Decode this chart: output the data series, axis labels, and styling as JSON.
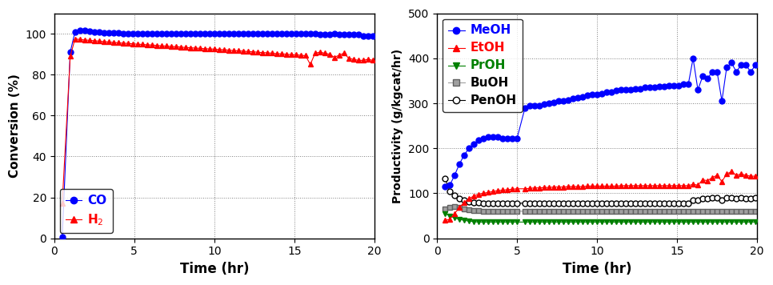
{
  "left_plot": {
    "xlabel": "Time (hr)",
    "ylabel": "Conversion (%)",
    "xlim": [
      0,
      20
    ],
    "ylim": [
      0,
      110
    ],
    "yticks": [
      0,
      20,
      40,
      60,
      80,
      100
    ],
    "xticks": [
      0,
      5,
      10,
      15,
      20
    ],
    "CO_x": [
      0.5,
      1.0,
      1.3,
      1.6,
      1.9,
      2.2,
      2.5,
      2.8,
      3.1,
      3.4,
      3.7,
      4.0,
      4.3,
      4.6,
      4.9,
      5.2,
      5.5,
      5.8,
      6.1,
      6.4,
      6.7,
      7.0,
      7.3,
      7.6,
      7.9,
      8.2,
      8.5,
      8.8,
      9.1,
      9.4,
      9.7,
      10.0,
      10.3,
      10.6,
      10.9,
      11.2,
      11.5,
      11.8,
      12.1,
      12.4,
      12.7,
      13.0,
      13.3,
      13.6,
      13.9,
      14.2,
      14.5,
      14.8,
      15.1,
      15.4,
      15.7,
      16.0,
      16.3,
      16.6,
      16.9,
      17.2,
      17.5,
      17.8,
      18.1,
      18.4,
      18.7,
      19.0,
      19.3,
      19.6,
      19.9
    ],
    "CO_y": [
      0.5,
      91.0,
      101.0,
      101.5,
      101.5,
      101.2,
      101.0,
      100.8,
      100.6,
      100.5,
      100.4,
      100.3,
      100.2,
      100.2,
      100.1,
      100.1,
      100.0,
      100.0,
      100.1,
      100.2,
      100.0,
      100.0,
      99.9,
      100.0,
      100.0,
      100.1,
      100.0,
      99.9,
      100.0,
      100.0,
      100.0,
      100.0,
      100.0,
      99.9,
      100.0,
      100.0,
      100.0,
      100.0,
      100.0,
      100.0,
      100.0,
      100.0,
      100.0,
      100.0,
      100.0,
      100.0,
      100.0,
      100.0,
      100.0,
      100.0,
      100.0,
      100.0,
      100.0,
      99.5,
      99.8,
      99.5,
      100.0,
      99.5,
      99.5,
      99.5,
      99.5,
      99.5,
      99.0,
      99.0,
      99.0
    ],
    "H2_x": [
      0.5,
      1.0,
      1.3,
      1.6,
      1.9,
      2.2,
      2.5,
      2.8,
      3.1,
      3.4,
      3.7,
      4.0,
      4.3,
      4.6,
      4.9,
      5.2,
      5.5,
      5.8,
      6.1,
      6.4,
      6.7,
      7.0,
      7.3,
      7.6,
      7.9,
      8.2,
      8.5,
      8.8,
      9.1,
      9.4,
      9.7,
      10.0,
      10.3,
      10.6,
      10.9,
      11.2,
      11.5,
      11.8,
      12.1,
      12.4,
      12.7,
      13.0,
      13.3,
      13.6,
      13.9,
      14.2,
      14.5,
      14.8,
      15.1,
      15.4,
      15.7,
      16.0,
      16.3,
      16.6,
      16.9,
      17.2,
      17.5,
      17.8,
      18.1,
      18.4,
      18.7,
      19.0,
      19.3,
      19.6,
      19.9
    ],
    "H2_y": [
      17.0,
      89.0,
      97.5,
      97.2,
      97.0,
      96.8,
      96.6,
      96.4,
      96.2,
      96.0,
      95.8,
      95.6,
      95.4,
      95.3,
      95.1,
      94.9,
      94.8,
      94.6,
      94.5,
      94.3,
      94.1,
      94.0,
      93.8,
      93.7,
      93.5,
      93.3,
      93.2,
      93.0,
      92.9,
      92.7,
      92.6,
      92.5,
      92.3,
      92.2,
      92.0,
      91.8,
      91.7,
      91.5,
      91.3,
      91.2,
      91.0,
      90.8,
      90.7,
      90.5,
      90.3,
      90.2,
      90.0,
      89.8,
      89.7,
      89.5,
      89.3,
      85.0,
      90.5,
      91.0,
      90.5,
      90.0,
      88.5,
      89.5,
      90.5,
      88.0,
      87.5,
      87.0,
      87.0,
      87.5,
      87.0
    ],
    "CO_color": "#0000FF",
    "H2_color": "#FF0000",
    "CO_label": "CO",
    "H2_label": "H$_2$"
  },
  "right_plot": {
    "xlabel": "Time (hr)",
    "ylabel": "Productivity (g/kgcat/hr)",
    "xlim": [
      0,
      20
    ],
    "ylim": [
      0,
      500
    ],
    "yticks": [
      0,
      100,
      200,
      300,
      400,
      500
    ],
    "xticks": [
      0,
      5,
      10,
      15,
      20
    ],
    "MeOH_x": [
      0.5,
      0.8,
      1.1,
      1.4,
      1.7,
      2.0,
      2.3,
      2.6,
      2.9,
      3.2,
      3.5,
      3.8,
      4.1,
      4.4,
      4.7,
      5.0,
      5.5,
      5.8,
      6.1,
      6.4,
      6.7,
      7.0,
      7.3,
      7.6,
      7.9,
      8.2,
      8.5,
      8.8,
      9.1,
      9.4,
      9.7,
      10.0,
      10.3,
      10.6,
      10.9,
      11.2,
      11.5,
      11.8,
      12.1,
      12.4,
      12.7,
      13.0,
      13.3,
      13.6,
      13.9,
      14.2,
      14.5,
      14.8,
      15.1,
      15.4,
      15.7,
      16.0,
      16.3,
      16.6,
      16.9,
      17.2,
      17.5,
      17.8,
      18.1,
      18.4,
      18.7,
      19.0,
      19.3,
      19.6,
      19.9
    ],
    "MeOH_y": [
      115.0,
      118.0,
      140.0,
      165.0,
      185.0,
      200.0,
      210.0,
      218.0,
      222.0,
      225.0,
      225.0,
      225.0,
      222.0,
      222.0,
      222.0,
      222.0,
      290.0,
      295.0,
      295.0,
      295.0,
      298.0,
      300.0,
      302.0,
      305.0,
      305.0,
      308.0,
      310.0,
      312.0,
      315.0,
      318.0,
      320.0,
      320.0,
      322.0,
      325.0,
      325.0,
      328.0,
      330.0,
      330.0,
      330.0,
      332.0,
      332.0,
      335.0,
      335.0,
      335.0,
      338.0,
      338.0,
      340.0,
      340.0,
      340.0,
      342.0,
      342.0,
      400.0,
      330.0,
      360.0,
      355.0,
      370.0,
      370.0,
      305.0,
      380.0,
      390.0,
      370.0,
      385.0,
      385.0,
      370.0,
      385.0
    ],
    "EtOH_x": [
      0.5,
      0.8,
      1.1,
      1.4,
      1.7,
      2.0,
      2.3,
      2.6,
      2.9,
      3.2,
      3.5,
      3.8,
      4.1,
      4.4,
      4.7,
      5.0,
      5.5,
      5.8,
      6.1,
      6.4,
      6.7,
      7.0,
      7.3,
      7.6,
      7.9,
      8.2,
      8.5,
      8.8,
      9.1,
      9.4,
      9.7,
      10.0,
      10.3,
      10.6,
      10.9,
      11.2,
      11.5,
      11.8,
      12.1,
      12.4,
      12.7,
      13.0,
      13.3,
      13.6,
      13.9,
      14.2,
      14.5,
      14.8,
      15.1,
      15.4,
      15.7,
      16.0,
      16.3,
      16.6,
      16.9,
      17.2,
      17.5,
      17.8,
      18.1,
      18.4,
      18.7,
      19.0,
      19.3,
      19.6,
      19.9
    ],
    "EtOH_y": [
      40.0,
      42.0,
      55.0,
      68.0,
      80.0,
      88.0,
      94.0,
      98.0,
      100.0,
      102.0,
      104.0,
      106.0,
      107.0,
      108.0,
      109.0,
      110.0,
      110.0,
      111.0,
      112.0,
      112.0,
      113.0,
      113.0,
      114.0,
      114.0,
      114.0,
      115.0,
      115.0,
      115.0,
      115.0,
      116.0,
      116.0,
      116.0,
      116.0,
      116.0,
      116.0,
      116.0,
      117.0,
      117.0,
      117.0,
      117.0,
      117.0,
      117.0,
      117.0,
      117.0,
      117.0,
      117.0,
      117.0,
      117.0,
      117.0,
      117.0,
      117.0,
      120.0,
      118.0,
      130.0,
      128.0,
      135.0,
      140.0,
      126.0,
      143.0,
      148.0,
      140.0,
      143.0,
      140.0,
      138.0,
      138.0
    ],
    "PrOH_x": [
      0.5,
      0.8,
      1.1,
      1.4,
      1.7,
      2.0,
      2.3,
      2.6,
      2.9,
      3.2,
      3.5,
      3.8,
      4.1,
      4.4,
      4.7,
      5.0,
      5.5,
      5.8,
      6.1,
      6.4,
      6.7,
      7.0,
      7.3,
      7.6,
      7.9,
      8.2,
      8.5,
      8.8,
      9.1,
      9.4,
      9.7,
      10.0,
      10.3,
      10.6,
      10.9,
      11.2,
      11.5,
      11.8,
      12.1,
      12.4,
      12.7,
      13.0,
      13.3,
      13.6,
      13.9,
      14.2,
      14.5,
      14.8,
      15.1,
      15.4,
      15.7,
      16.0,
      16.3,
      16.6,
      16.9,
      17.2,
      17.5,
      17.8,
      18.1,
      18.4,
      18.7,
      19.0,
      19.3,
      19.6,
      19.9
    ],
    "PrOH_y": [
      55.0,
      50.0,
      45.0,
      42.0,
      40.0,
      38.0,
      37.0,
      36.0,
      36.0,
      36.0,
      36.0,
      36.0,
      36.0,
      36.0,
      36.0,
      36.0,
      36.0,
      36.0,
      36.0,
      36.0,
      36.0,
      36.0,
      36.0,
      36.0,
      36.0,
      36.0,
      36.0,
      36.0,
      36.0,
      36.0,
      36.0,
      36.0,
      36.0,
      36.0,
      36.0,
      36.0,
      36.0,
      36.0,
      36.0,
      36.0,
      36.0,
      36.0,
      36.0,
      36.0,
      36.0,
      36.0,
      36.0,
      36.0,
      36.0,
      36.0,
      36.0,
      36.0,
      36.0,
      36.0,
      36.0,
      36.0,
      36.0,
      36.0,
      36.0,
      36.0,
      36.0,
      36.0,
      36.0,
      36.0,
      36.0
    ],
    "BuOH_x": [
      0.5,
      0.8,
      1.1,
      1.4,
      1.7,
      2.0,
      2.3,
      2.6,
      2.9,
      3.2,
      3.5,
      3.8,
      4.1,
      4.4,
      4.7,
      5.0,
      5.5,
      5.8,
      6.1,
      6.4,
      6.7,
      7.0,
      7.3,
      7.6,
      7.9,
      8.2,
      8.5,
      8.8,
      9.1,
      9.4,
      9.7,
      10.0,
      10.3,
      10.6,
      10.9,
      11.2,
      11.5,
      11.8,
      12.1,
      12.4,
      12.7,
      13.0,
      13.3,
      13.6,
      13.9,
      14.2,
      14.5,
      14.8,
      15.1,
      15.4,
      15.7,
      16.0,
      16.3,
      16.6,
      16.9,
      17.2,
      17.5,
      17.8,
      18.1,
      18.4,
      18.7,
      19.0,
      19.3,
      19.6,
      19.9
    ],
    "BuOH_y": [
      65.0,
      68.0,
      70.0,
      68.0,
      65.0,
      63.0,
      62.0,
      61.0,
      60.0,
      60.0,
      60.0,
      60.0,
      60.0,
      60.0,
      60.0,
      60.0,
      60.0,
      60.0,
      60.0,
      60.0,
      60.0,
      60.0,
      60.0,
      60.0,
      60.0,
      60.0,
      60.0,
      60.0,
      60.0,
      60.0,
      60.0,
      60.0,
      60.0,
      60.0,
      60.0,
      60.0,
      60.0,
      60.0,
      60.0,
      60.0,
      60.0,
      60.0,
      60.0,
      60.0,
      60.0,
      60.0,
      60.0,
      60.0,
      60.0,
      60.0,
      60.0,
      60.0,
      60.0,
      60.0,
      60.0,
      60.0,
      60.0,
      60.0,
      60.0,
      60.0,
      60.0,
      60.0,
      60.0,
      60.0,
      60.0
    ],
    "PenOH_x": [
      0.5,
      0.8,
      1.1,
      1.4,
      1.7,
      2.0,
      2.3,
      2.6,
      2.9,
      3.2,
      3.5,
      3.8,
      4.1,
      4.4,
      4.7,
      5.0,
      5.5,
      5.8,
      6.1,
      6.4,
      6.7,
      7.0,
      7.3,
      7.6,
      7.9,
      8.2,
      8.5,
      8.8,
      9.1,
      9.4,
      9.7,
      10.0,
      10.3,
      10.6,
      10.9,
      11.2,
      11.5,
      11.8,
      12.1,
      12.4,
      12.7,
      13.0,
      13.3,
      13.6,
      13.9,
      14.2,
      14.5,
      14.8,
      15.1,
      15.4,
      15.7,
      16.0,
      16.3,
      16.6,
      16.9,
      17.2,
      17.5,
      17.8,
      18.1,
      18.4,
      18.7,
      19.0,
      19.3,
      19.6,
      19.9
    ],
    "PenOH_y": [
      133.0,
      105.0,
      95.0,
      88.0,
      84.0,
      82.0,
      80.0,
      79.0,
      78.0,
      78.0,
      78.0,
      78.0,
      78.0,
      78.0,
      78.0,
      78.0,
      78.0,
      78.0,
      78.0,
      78.0,
      78.0,
      78.0,
      78.0,
      78.0,
      78.0,
      78.0,
      78.0,
      78.0,
      78.0,
      78.0,
      78.0,
      78.0,
      78.0,
      78.0,
      78.0,
      78.0,
      78.0,
      78.0,
      78.0,
      78.0,
      78.0,
      78.0,
      78.0,
      78.0,
      78.0,
      78.0,
      78.0,
      78.0,
      78.0,
      78.0,
      78.0,
      85.0,
      85.0,
      88.0,
      88.0,
      90.0,
      90.0,
      85.0,
      90.0,
      90.0,
      88.0,
      90.0,
      88.0,
      88.0,
      90.0
    ],
    "MeOH_color": "#0000FF",
    "EtOH_color": "#FF0000",
    "PrOH_color": "#008000",
    "BuOH_color": "#808080",
    "MeOH_label": "MeOH",
    "EtOH_label": "EtOH",
    "PrOH_label": "PrOH",
    "BuOH_label": "BuOH",
    "PenOH_label": "PenOH"
  }
}
